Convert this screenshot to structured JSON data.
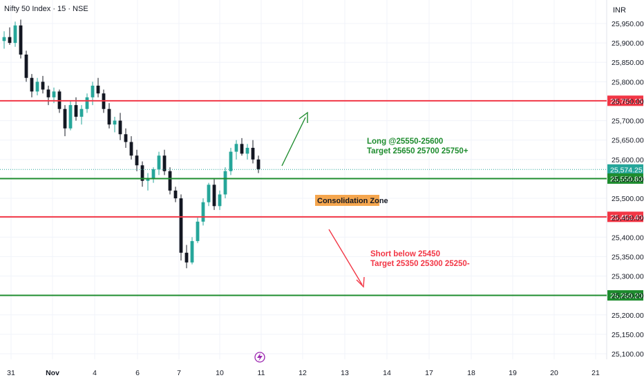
{
  "header": {
    "symbol": "Nifty 50 Index · 15 · NSE",
    "currency": "INR"
  },
  "colors": {
    "up": "#26a69a",
    "down": "#131722",
    "resistance": "#f23645",
    "support": "#1e8c2e",
    "current": "#26a69a",
    "long_text": "#1e8c2e",
    "short_text": "#f23645",
    "zone_bg": "#f5a64e",
    "lightning": "#9c27b0"
  },
  "chart_data": {
    "type": "candlestick",
    "title": "Nifty 50 Index · 15 · NSE",
    "y_axis": {
      "unit": "INR",
      "range": [
        25075,
        25975
      ],
      "ticks": [
        "25,950.00",
        "25,900.00",
        "25,850.00",
        "25,800.00",
        "25,750.00",
        "25,700.00",
        "25,650.00",
        "25,600.00",
        "25,550.00",
        "25,500.00",
        "25,450.00",
        "25,400.00",
        "25,350.00",
        "25,300.00",
        "25,250.00",
        "25,200.00",
        "25,150.00",
        "25,100.00"
      ]
    },
    "x_axis": {
      "ticks": [
        "31",
        "Nov",
        "4",
        "6",
        "7",
        "10",
        "11",
        "12",
        "13",
        "14",
        "17",
        "18",
        "19",
        "20",
        "21"
      ],
      "bold_ticks": [
        "Nov"
      ]
    },
    "levels": [
      {
        "name": "resistance-top",
        "value": 25751.15,
        "label": "25,751.15",
        "kind": "resistance"
      },
      {
        "name": "current-price",
        "value": 25574.25,
        "label": "25,574.25",
        "kind": "current"
      },
      {
        "name": "support-upper",
        "value": 25550.8,
        "label": "25,550.80",
        "kind": "support"
      },
      {
        "name": "resistance-lower",
        "value": 25452.4,
        "label": "25,452.40",
        "kind": "resistance"
      },
      {
        "name": "support-bottom",
        "value": 25250.2,
        "label": "25,250.20",
        "kind": "support"
      }
    ],
    "series": [
      {
        "x": 0,
        "y": [
          25905,
          25930,
          25885,
          25915
        ]
      },
      {
        "x": 1,
        "y": [
          25915,
          25940,
          25895,
          25900
        ]
      },
      {
        "x": 2,
        "y": [
          25900,
          25955,
          25890,
          25945
        ]
      },
      {
        "x": 3,
        "y": [
          25945,
          25960,
          25860,
          25870
        ]
      },
      {
        "x": 4,
        "y": [
          25870,
          25880,
          25800,
          25810
        ]
      },
      {
        "x": 5,
        "y": [
          25810,
          25820,
          25760,
          25775
        ]
      },
      {
        "x": 6,
        "y": [
          25775,
          25810,
          25765,
          25800
        ]
      },
      {
        "x": 7,
        "y": [
          25800,
          25815,
          25770,
          25780
        ]
      },
      {
        "x": 8,
        "y": [
          25780,
          25790,
          25740,
          25760
        ]
      },
      {
        "x": 9,
        "y": [
          25760,
          25785,
          25745,
          25775
        ]
      },
      {
        "x": 10,
        "y": [
          25775,
          25780,
          25720,
          25730
        ]
      },
      {
        "x": 11,
        "y": [
          25730,
          25740,
          25660,
          25680
        ]
      },
      {
        "x": 12,
        "y": [
          25680,
          25750,
          25675,
          25740
        ]
      },
      {
        "x": 13,
        "y": [
          25740,
          25760,
          25700,
          25710
        ]
      },
      {
        "x": 14,
        "y": [
          25710,
          25740,
          25690,
          25730
        ]
      },
      {
        "x": 15,
        "y": [
          25730,
          25770,
          25720,
          25760
        ]
      },
      {
        "x": 16,
        "y": [
          25760,
          25800,
          25740,
          25790
        ]
      },
      {
        "x": 17,
        "y": [
          25790,
          25810,
          25760,
          25770
        ]
      },
      {
        "x": 18,
        "y": [
          25770,
          25780,
          25720,
          25730
        ]
      },
      {
        "x": 19,
        "y": [
          25730,
          25745,
          25680,
          25690
        ]
      },
      {
        "x": 20,
        "y": [
          25690,
          25710,
          25670,
          25700
        ]
      },
      {
        "x": 21,
        "y": [
          25700,
          25720,
          25650,
          25665
        ]
      },
      {
        "x": 22,
        "y": [
          25665,
          25680,
          25630,
          25645
        ]
      },
      {
        "x": 23,
        "y": [
          25645,
          25660,
          25600,
          25610
        ]
      },
      {
        "x": 24,
        "y": [
          25610,
          25625,
          25570,
          25585
        ]
      },
      {
        "x": 25,
        "y": [
          25585,
          25595,
          25530,
          25545
        ]
      },
      {
        "x": 26,
        "y": [
          25545,
          25565,
          25520,
          25550
        ]
      },
      {
        "x": 27,
        "y": [
          25550,
          25580,
          25540,
          25575
        ]
      },
      {
        "x": 28,
        "y": [
          25575,
          25620,
          25560,
          25610
        ]
      },
      {
        "x": 29,
        "y": [
          25610,
          25625,
          25560,
          25570
        ]
      },
      {
        "x": 30,
        "y": [
          25570,
          25580,
          25510,
          25520
        ]
      },
      {
        "x": 31,
        "y": [
          25520,
          25530,
          25490,
          25500
        ]
      },
      {
        "x": 32,
        "y": [
          25500,
          25510,
          25340,
          25360
        ]
      },
      {
        "x": 33,
        "y": [
          25360,
          25380,
          25320,
          25335
        ]
      },
      {
        "x": 34,
        "y": [
          25335,
          25400,
          25330,
          25390
        ]
      },
      {
        "x": 35,
        "y": [
          25390,
          25450,
          25385,
          25440
        ]
      },
      {
        "x": 36,
        "y": [
          25440,
          25500,
          25430,
          25490
        ]
      },
      {
        "x": 37,
        "y": [
          25490,
          25540,
          25480,
          25535
        ]
      },
      {
        "x": 38,
        "y": [
          25535,
          25550,
          25470,
          25480
        ]
      },
      {
        "x": 39,
        "y": [
          25480,
          25520,
          25470,
          25510
        ]
      },
      {
        "x": 40,
        "y": [
          25510,
          25580,
          25500,
          25570
        ]
      },
      {
        "x": 41,
        "y": [
          25570,
          25630,
          25560,
          25620
        ]
      },
      {
        "x": 42,
        "y": [
          25620,
          25650,
          25600,
          25640
        ]
      },
      {
        "x": 43,
        "y": [
          25640,
          25655,
          25610,
          25615
        ]
      },
      {
        "x": 44,
        "y": [
          25615,
          25640,
          25600,
          25630
        ]
      },
      {
        "x": 45,
        "y": [
          25630,
          25650,
          25590,
          25600
        ]
      },
      {
        "x": 46,
        "y": [
          25600,
          25610,
          25565,
          25575
        ]
      }
    ],
    "annotations": {
      "long": {
        "line1": "Long @25550-25600",
        "line2": "Target 25650 25700 25750+"
      },
      "zone": "Consolidation Zone",
      "short": {
        "line1": "Short below 25450",
        "line2": "Target 25350 25300 25250-"
      }
    }
  }
}
